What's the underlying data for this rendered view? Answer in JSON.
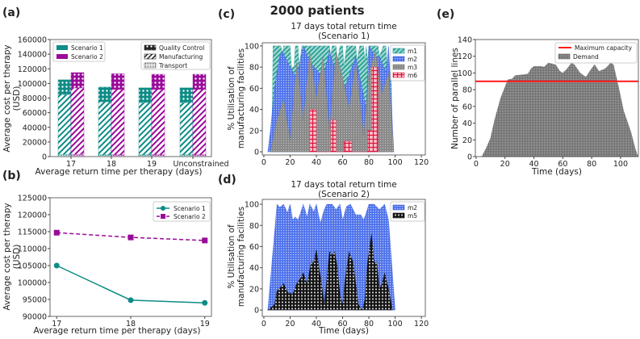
{
  "figure_title": "2000 patients",
  "colors": {
    "scenario1": "#0e8c86",
    "scenario2": "#9a0a9a",
    "m1": "#1f9a8f",
    "m2": "#3b5fe0",
    "m3": "#7a7a7a",
    "m5": "#111111",
    "m6": "#e0143c",
    "capacity": "#ff1a1a",
    "demand": "#808080"
  },
  "chart_data": [
    {
      "panel": "(a)",
      "type": "bar",
      "stacked": true,
      "categories": [
        "17",
        "18",
        "19",
        "Unconstrained"
      ],
      "xlabel": "Average return time per therapy (days)",
      "ylabel": [
        "Average cost per therapy",
        "(USD)"
      ],
      "ylim": [
        0,
        160000
      ],
      "yticks": [
        0,
        20000,
        40000,
        60000,
        80000,
        100000,
        120000,
        140000,
        160000
      ],
      "legend_scenarios": [
        "Scenario 1",
        "Scenario 2"
      ],
      "legend_components": [
        "Quality Control",
        "Manufacturing",
        "Transport"
      ],
      "series": [
        {
          "name": "Scenario 1",
          "transport": [
            3000,
            2500,
            2500,
            2500
          ],
          "manufacturing": [
            82000,
            72500,
            71500,
            71500
          ],
          "quality_control": [
            20000,
            20000,
            20000,
            20000
          ],
          "total": [
            105000,
            95000,
            94000,
            94000
          ]
        },
        {
          "name": "Scenario 2",
          "transport": [
            3000,
            2500,
            2500,
            2500
          ],
          "manufacturing": [
            91000,
            89500,
            89500,
            89500
          ],
          "quality_control": [
            20800,
            21300,
            20500,
            20500
          ],
          "total": [
            114800,
            113300,
            112500,
            112500
          ]
        }
      ]
    },
    {
      "panel": "(b)",
      "type": "line",
      "x": [
        17,
        18,
        19
      ],
      "xlim": [
        16.91,
        19.09
      ],
      "xticks": [
        "17",
        "18",
        "19"
      ],
      "xlabel": "Average return time per therapy (days)",
      "ylabel": [
        "Average cost per therapy",
        "(USD)"
      ],
      "ylim": [
        90000,
        125000
      ],
      "yticks": [
        90000,
        95000,
        100000,
        105000,
        110000,
        115000,
        120000,
        125000
      ],
      "legend": "top-right",
      "series": [
        {
          "name": "Scenario 1",
          "style": "solid",
          "marker": "circle",
          "values": [
            105000,
            94800,
            94000
          ]
        },
        {
          "name": "Scenario 2",
          "style": "dashed",
          "marker": "square",
          "values": [
            114700,
            113300,
            112400
          ]
        }
      ]
    },
    {
      "panel": "(c)",
      "type": "area",
      "title": [
        "17 days total return time",
        "(Scenario 1)"
      ],
      "ylabel": [
        "% Utilisation of",
        "manufacturing facilities"
      ],
      "xlabel": "",
      "xlim": [
        -1.2,
        123
      ],
      "ylim": [
        -3,
        103
      ],
      "xticks": [
        0,
        20,
        40,
        60,
        80,
        100,
        120
      ],
      "yticks": [
        0,
        20,
        40,
        60,
        80,
        100
      ],
      "legend": "top-right",
      "series": [
        {
          "name": "m1",
          "points": [
            [
              6,
              0
            ],
            [
              7,
              100
            ],
            [
              13,
              100
            ],
            [
              14,
              92
            ],
            [
              15,
              100
            ],
            [
              20,
              100
            ],
            [
              21,
              80
            ],
            [
              23,
              80
            ],
            [
              24,
              100
            ],
            [
              26,
              100
            ],
            [
              27,
              80
            ],
            [
              29,
              100
            ],
            [
              50,
              100
            ],
            [
              51,
              90
            ],
            [
              52,
              100
            ],
            [
              55,
              100
            ],
            [
              56,
              85
            ],
            [
              58,
              100
            ],
            [
              60,
              100
            ],
            [
              61,
              80
            ],
            [
              63,
              100
            ],
            [
              70,
              100
            ],
            [
              71,
              85
            ],
            [
              73,
              100
            ],
            [
              76,
              100
            ],
            [
              77,
              85
            ],
            [
              78,
              100
            ],
            [
              79,
              85
            ],
            [
              80,
              100
            ],
            [
              87,
              100
            ],
            [
              88,
              90
            ],
            [
              91,
              100
            ],
            [
              93,
              100
            ],
            [
              94,
              75
            ],
            [
              97,
              75
            ],
            [
              98,
              0
            ]
          ]
        },
        {
          "name": "m2",
          "points": [
            [
              3,
              0
            ],
            [
              5,
              20
            ],
            [
              8,
              60
            ],
            [
              12,
              90
            ],
            [
              14,
              95
            ],
            [
              20,
              80
            ],
            [
              25,
              70
            ],
            [
              30,
              100
            ],
            [
              35,
              85
            ],
            [
              45,
              70
            ],
            [
              50,
              95
            ],
            [
              60,
              55
            ],
            [
              70,
              90
            ],
            [
              78,
              40
            ],
            [
              80,
              100
            ],
            [
              85,
              90
            ],
            [
              88,
              90
            ],
            [
              93,
              75
            ],
            [
              95,
              100
            ],
            [
              99,
              0
            ]
          ]
        },
        {
          "name": "m3",
          "points": [
            [
              5,
              0
            ],
            [
              10,
              30
            ],
            [
              15,
              50
            ],
            [
              20,
              10
            ],
            [
              25,
              85
            ],
            [
              30,
              30
            ],
            [
              35,
              95
            ],
            [
              40,
              50
            ],
            [
              45,
              90
            ],
            [
              50,
              20
            ],
            [
              55,
              95
            ],
            [
              60,
              70
            ],
            [
              65,
              40
            ],
            [
              70,
              85
            ],
            [
              76,
              15
            ],
            [
              80,
              75
            ],
            [
              85,
              95
            ],
            [
              90,
              55
            ],
            [
              95,
              75
            ],
            [
              99,
              0
            ]
          ]
        },
        {
          "name": "m6",
          "points": [
            [
              35,
              0
            ],
            [
              35,
              40
            ],
            [
              40,
              40
            ],
            [
              40,
              0
            ],
            [
              51,
              0
            ],
            [
              51,
              30
            ],
            [
              55,
              30
            ],
            [
              55,
              0
            ],
            [
              61,
              0
            ],
            [
              61,
              10
            ],
            [
              67,
              10
            ],
            [
              67,
              0
            ],
            [
              79,
              0
            ],
            [
              79,
              20
            ],
            [
              82,
              20
            ],
            [
              82,
              80
            ],
            [
              87,
              80
            ],
            [
              87,
              0
            ]
          ]
        }
      ]
    },
    {
      "panel": "(d)",
      "type": "area",
      "title": [
        "17 days total return time",
        "(Scenario 2)"
      ],
      "ylabel": [
        "% Utilisation of",
        "manufacturing facilities"
      ],
      "xlabel": "Time (days)",
      "xlim": [
        -1.2,
        123
      ],
      "ylim": [
        -6,
        104.6
      ],
      "xticks": [
        0,
        20,
        40,
        60,
        80,
        100,
        120
      ],
      "yticks": [
        0,
        20,
        40,
        60,
        80,
        100
      ],
      "legend": "top-right",
      "series": [
        {
          "name": "m2",
          "points": [
            [
              3,
              0
            ],
            [
              10,
              100
            ],
            [
              12,
              97
            ],
            [
              15,
              100
            ],
            [
              18,
              92
            ],
            [
              20,
              100
            ],
            [
              22,
              85
            ],
            [
              24,
              88
            ],
            [
              26,
              85
            ],
            [
              28,
              92
            ],
            [
              30,
              100
            ],
            [
              33,
              88
            ],
            [
              35,
              100
            ],
            [
              38,
              93
            ],
            [
              40,
              100
            ],
            [
              43,
              82
            ],
            [
              46,
              95
            ],
            [
              48,
              100
            ],
            [
              52,
              100
            ],
            [
              55,
              95
            ],
            [
              58,
              100
            ],
            [
              60,
              85
            ],
            [
              63,
              98
            ],
            [
              66,
              100
            ],
            [
              70,
              90
            ],
            [
              74,
              90
            ],
            [
              76,
              85
            ],
            [
              78,
              92
            ],
            [
              80,
              100
            ],
            [
              84,
              100
            ],
            [
              88,
              95
            ],
            [
              92,
              100
            ],
            [
              95,
              85
            ],
            [
              100,
              0
            ]
          ]
        },
        {
          "name": "m5",
          "points": [
            [
              3,
              0
            ],
            [
              5,
              2
            ],
            [
              8,
              5
            ],
            [
              10,
              18
            ],
            [
              13,
              22
            ],
            [
              15,
              25
            ],
            [
              18,
              17
            ],
            [
              22,
              15
            ],
            [
              25,
              25
            ],
            [
              28,
              30
            ],
            [
              30,
              35
            ],
            [
              33,
              25
            ],
            [
              36,
              45
            ],
            [
              38,
              45
            ],
            [
              40,
              57
            ],
            [
              42,
              40
            ],
            [
              44,
              25
            ],
            [
              46,
              5
            ],
            [
              48,
              30
            ],
            [
              50,
              55
            ],
            [
              52,
              52
            ],
            [
              54,
              55
            ],
            [
              56,
              40
            ],
            [
              58,
              15
            ],
            [
              60,
              5
            ],
            [
              62,
              30
            ],
            [
              65,
              55
            ],
            [
              68,
              45
            ],
            [
              70,
              25
            ],
            [
              72,
              5
            ],
            [
              75,
              0
            ],
            [
              77,
              10
            ],
            [
              79,
              45
            ],
            [
              82,
              72
            ],
            [
              84,
              45
            ],
            [
              86,
              45
            ],
            [
              88,
              20
            ],
            [
              90,
              25
            ],
            [
              92,
              35
            ],
            [
              95,
              20
            ],
            [
              98,
              0
            ]
          ]
        }
      ]
    },
    {
      "panel": "(e)",
      "type": "area",
      "xlabel": "Time (days)",
      "ylabel": "Number of parallel lines",
      "xlim": [
        -0.5,
        112.3
      ],
      "ylim": [
        0,
        140
      ],
      "xticks": [
        0,
        20,
        40,
        60,
        80,
        100
      ],
      "yticks": [
        0,
        20,
        40,
        60,
        80,
        100,
        120,
        140
      ],
      "legend": "top-right",
      "capacity": {
        "name": "Maximum capacity",
        "value": 90
      },
      "demand": {
        "name": "Demand",
        "points": [
          [
            4,
            0
          ],
          [
            7,
            10
          ],
          [
            10,
            22
          ],
          [
            13,
            45
          ],
          [
            17,
            70
          ],
          [
            22,
            92
          ],
          [
            25,
            93
          ],
          [
            27,
            97
          ],
          [
            33,
            98
          ],
          [
            36,
            99
          ],
          [
            38,
            105
          ],
          [
            40,
            108
          ],
          [
            45,
            108
          ],
          [
            47,
            107
          ],
          [
            50,
            112
          ],
          [
            55,
            110
          ],
          [
            58,
            102
          ],
          [
            60,
            100
          ],
          [
            63,
            105
          ],
          [
            66,
            112
          ],
          [
            68,
            110
          ],
          [
            72,
            100
          ],
          [
            76,
            95
          ],
          [
            79,
            103
          ],
          [
            82,
            110
          ],
          [
            85,
            102
          ],
          [
            88,
            104
          ],
          [
            90,
            106
          ],
          [
            93,
            112
          ],
          [
            95,
            110
          ],
          [
            97,
            95
          ],
          [
            99,
            80
          ],
          [
            102,
            55
          ],
          [
            107,
            30
          ],
          [
            110,
            10
          ],
          [
            112,
            0
          ]
        ]
      }
    }
  ]
}
